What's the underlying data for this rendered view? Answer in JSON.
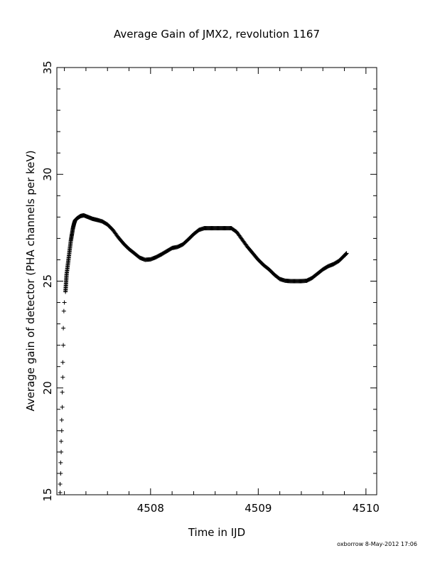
{
  "chart_data": {
    "type": "scatter",
    "title": "Average Gain of JMX2, revolution 1167",
    "xlabel": "Time in IJD",
    "ylabel": "Average gain of detector (PHA channels per keV)",
    "xlim": [
      4507.13,
      4510.1
    ],
    "ylim": [
      15,
      35
    ],
    "x_ticks": [
      4508,
      4509,
      4510
    ],
    "y_ticks": [
      15,
      20,
      25,
      30,
      35
    ],
    "x_tick_labels": [
      "4508",
      "4509",
      "4510"
    ],
    "y_tick_labels": [
      "15",
      "20",
      "25",
      "30",
      "35"
    ],
    "marker": "plus",
    "grid": false,
    "footer": "oxborrow  8-May-2012 17:06",
    "series": [
      {
        "points": [
          [
            4507.16,
            15.1
          ],
          [
            4507.16,
            15.5
          ],
          [
            4507.165,
            16.0
          ],
          [
            4507.165,
            16.5
          ],
          [
            4507.17,
            17.0
          ],
          [
            4507.17,
            17.5
          ],
          [
            4507.175,
            18.0
          ],
          [
            4507.175,
            18.5
          ],
          [
            4507.18,
            19.1
          ],
          [
            4507.18,
            19.8
          ],
          [
            4507.185,
            20.5
          ],
          [
            4507.185,
            21.2
          ],
          [
            4507.19,
            22.0
          ],
          [
            4507.19,
            22.8
          ],
          [
            4507.195,
            23.6
          ],
          [
            4507.2,
            24.0
          ],
          [
            4507.21,
            24.5
          ],
          [
            4507.215,
            24.9
          ],
          [
            4507.22,
            25.3
          ],
          [
            4507.23,
            25.7
          ],
          [
            4507.24,
            26.1
          ],
          [
            4507.25,
            26.5
          ],
          [
            4507.26,
            26.9
          ],
          [
            4507.27,
            27.2
          ],
          [
            4507.28,
            27.5
          ],
          [
            4507.29,
            27.7
          ],
          [
            4507.3,
            27.85
          ],
          [
            4507.32,
            27.95
          ],
          [
            4507.35,
            28.05
          ],
          [
            4507.38,
            28.08
          ],
          [
            4507.42,
            28.0
          ],
          [
            4507.46,
            27.92
          ],
          [
            4507.5,
            27.87
          ],
          [
            4507.55,
            27.8
          ],
          [
            4507.6,
            27.65
          ],
          [
            4507.65,
            27.4
          ],
          [
            4507.7,
            27.05
          ],
          [
            4507.75,
            26.75
          ],
          [
            4507.8,
            26.5
          ],
          [
            4507.85,
            26.3
          ],
          [
            4507.9,
            26.1
          ],
          [
            4507.95,
            26.0
          ],
          [
            4508.0,
            26.02
          ],
          [
            4508.05,
            26.12
          ],
          [
            4508.1,
            26.25
          ],
          [
            4508.15,
            26.4
          ],
          [
            4508.2,
            26.55
          ],
          [
            4508.25,
            26.6
          ],
          [
            4508.3,
            26.72
          ],
          [
            4508.35,
            26.95
          ],
          [
            4508.4,
            27.2
          ],
          [
            4508.45,
            27.4
          ],
          [
            4508.5,
            27.48
          ],
          [
            4508.55,
            27.48
          ],
          [
            4508.6,
            27.48
          ],
          [
            4508.65,
            27.48
          ],
          [
            4508.7,
            27.48
          ],
          [
            4508.75,
            27.48
          ],
          [
            4508.8,
            27.3
          ],
          [
            4508.85,
            26.95
          ],
          [
            4508.9,
            26.6
          ],
          [
            4508.95,
            26.3
          ],
          [
            4509.0,
            26.0
          ],
          [
            4509.05,
            25.75
          ],
          [
            4509.1,
            25.55
          ],
          [
            4509.15,
            25.3
          ],
          [
            4509.2,
            25.1
          ],
          [
            4509.25,
            25.02
          ],
          [
            4509.3,
            25.0
          ],
          [
            4509.35,
            25.0
          ],
          [
            4509.4,
            25.0
          ],
          [
            4509.45,
            25.02
          ],
          [
            4509.5,
            25.15
          ],
          [
            4509.55,
            25.35
          ],
          [
            4509.6,
            25.55
          ],
          [
            4509.65,
            25.7
          ],
          [
            4509.7,
            25.8
          ],
          [
            4509.75,
            25.95
          ],
          [
            4509.8,
            26.2
          ],
          [
            4509.82,
            26.3
          ]
        ]
      }
    ]
  }
}
